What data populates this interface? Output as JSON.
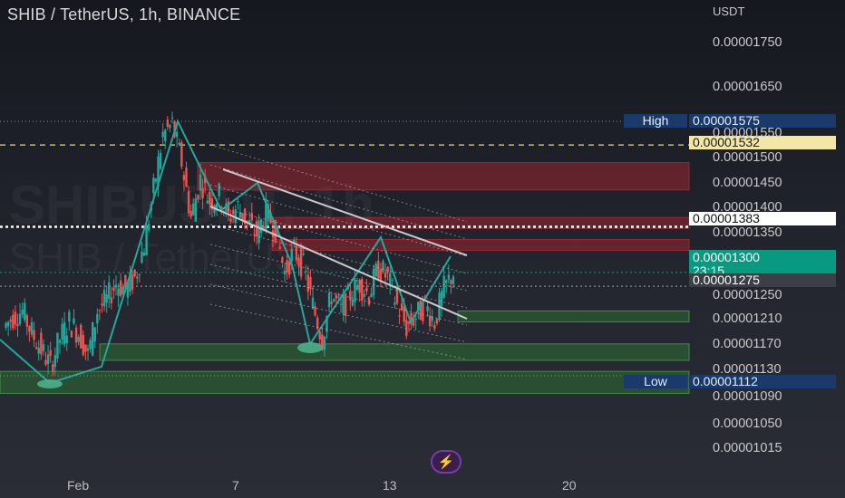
{
  "title": "SHIB / TetherUS, 1h, BINANCE",
  "watermark_line1": "SHIBUSDT, 1h",
  "watermark_line2": "SHIB / TetherUS",
  "price_tags": {
    "high_label": "High",
    "high_value": "0.00001575",
    "dashed_value": "0.00001532",
    "dotted_value": "0.00001383",
    "last_value": "0.00001300",
    "countdown": "23:15",
    "prev_value": "0.00001275",
    "low_label": "Low",
    "low_value": "0.00001112"
  },
  "colors": {
    "up": "#26a69a",
    "down": "#ef5350",
    "supply_zone": "#b32630",
    "demand_zone": "#2e7d32",
    "last_price": "#089981",
    "high_low_tag": "#1a3a6b",
    "dashed_line": "#e8d98a"
  },
  "chart_data": {
    "type": "candlestick",
    "unit": "USDT",
    "ylim": [
      9.8e-06,
      1.8e-05
    ],
    "y_ticks": [
      "0.00001750",
      "0.00001650",
      "0.00001550",
      "0.00001500",
      "0.00001450",
      "0.00001400",
      "0.00001350",
      "0.00001250",
      "0.00001210",
      "0.00001170",
      "0.00001130",
      "0.00001090",
      "0.00001050",
      "0.00001015"
    ],
    "x_ticks": [
      "Feb",
      "7",
      "13",
      "20"
    ],
    "series_close_approx": [
      1.2e-05,
      1.22e-05,
      1.23e-05,
      1.19e-05,
      1.16e-05,
      1.13e-05,
      1.18e-05,
      1.21e-05,
      1.19e-05,
      1.15e-05,
      1.23e-05,
      1.25e-05,
      1.28e-05,
      1.27e-05,
      1.29e-05,
      1.35e-05,
      1.45e-05,
      1.55e-05,
      1.57e-05,
      1.5e-05,
      1.4e-05,
      1.47e-05,
      1.43e-05,
      1.44e-05,
      1.4e-05,
      1.42e-05,
      1.39e-05,
      1.37e-05,
      1.41e-05,
      1.38e-05,
      1.3e-05,
      1.34e-05,
      1.31e-05,
      1.24e-05,
      1.18e-05,
      1.26e-05,
      1.23e-05,
      1.26e-05,
      1.28e-05,
      1.26e-05,
      1.31e-05,
      1.29e-05,
      1.24e-05,
      1.2e-05,
      1.22e-05,
      1.24e-05,
      1.21e-05,
      1.27e-05,
      1.3e-05
    ],
    "high": 1.575e-05,
    "low": 1.112e-05,
    "last": 1.3e-05,
    "previous": 1.275e-05,
    "dashed_level": 1.532e-05,
    "dotted_level": 1.383e-05,
    "supply_zones": [
      [
        1.45e-05,
        1.5e-05
      ],
      [
        1.38e-05,
        1.4e-05
      ],
      [
        1.34e-05,
        1.36e-05
      ]
    ],
    "demand_zones": [
      [
        1.21e-05,
        1.23e-05
      ],
      [
        1.14e-05,
        1.17e-05
      ],
      [
        1.08e-05,
        1.12e-05
      ]
    ],
    "channel_upper": [
      [
        1.48e-05,
        1.32e-05
      ]
    ],
    "channel_lower": [
      [
        1.41e-05,
        1.21e-05
      ]
    ]
  }
}
